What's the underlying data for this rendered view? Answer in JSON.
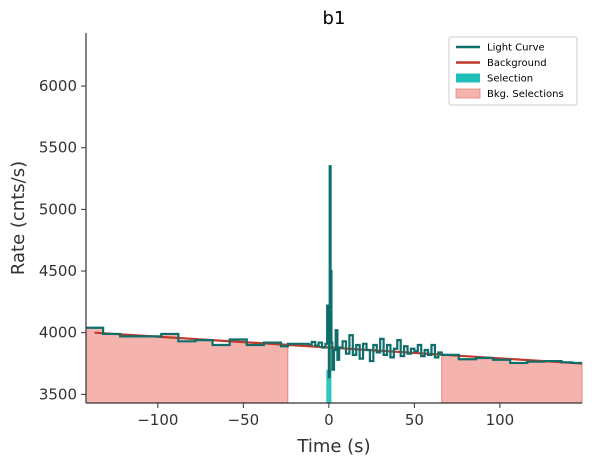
{
  "chart_data": {
    "type": "line",
    "title": "b1",
    "xlabel": "Time (s)",
    "ylabel": "Rate (cnts/s)",
    "xlim": [
      -142,
      148
    ],
    "ylim": [
      3430,
      6430
    ],
    "xticks": [
      -100,
      -50,
      0,
      50,
      100
    ],
    "xtick_labels": [
      "−100",
      "−50",
      "0",
      "50",
      "100"
    ],
    "yticks": [
      3500,
      4000,
      4500,
      5000,
      5500,
      6000
    ],
    "ytick_labels": [
      "3500",
      "4000",
      "4500",
      "5000",
      "5500",
      "6000"
    ],
    "grid": false,
    "legend_position": "top-right",
    "legend": [
      {
        "label": "Light Curve",
        "kind": "line",
        "color": "#0e6e6a"
      },
      {
        "label": "Background",
        "kind": "line",
        "color": "#c0392b"
      },
      {
        "label": "Selection",
        "kind": "patch",
        "color": "#1fbfb8"
      },
      {
        "label": "Bkg. Selections",
        "kind": "patch",
        "color": "#f4b4ad"
      }
    ],
    "colors": {
      "light_curve": "#0e6e6a",
      "background": "#c0392b",
      "selection": "#1fbfb8",
      "bkg_selection_fill": "#f4b4ad",
      "bkg_selection_edge": "#e8837a"
    },
    "series": [
      {
        "name": "Light Curve",
        "style": "step",
        "x": [
          -142,
          -132,
          -122,
          -107,
          -98,
          -88,
          -78,
          -68,
          -58,
          -48,
          -38,
          -28,
          -24,
          -12,
          -10,
          -8,
          -6,
          -4,
          -2,
          -1,
          0,
          0.5,
          1,
          1.5,
          2,
          3,
          4,
          5,
          6,
          8,
          10,
          12,
          14,
          16,
          18,
          20,
          22,
          24,
          26,
          28,
          30,
          32,
          34,
          36,
          38,
          40,
          42,
          44,
          46,
          48,
          50,
          52,
          54,
          56,
          58,
          60,
          62,
          64,
          66,
          76,
          86,
          96,
          106,
          116,
          126,
          136,
          142,
          148
        ],
        "y": [
          4040,
          3990,
          3970,
          3970,
          3990,
          3930,
          3940,
          3900,
          3945,
          3900,
          3920,
          3890,
          3910,
          3905,
          3925,
          3895,
          3920,
          3880,
          3910,
          4220,
          3640,
          5350,
          4500,
          3920,
          3700,
          3860,
          4020,
          3780,
          3880,
          3930,
          3830,
          3980,
          3820,
          3900,
          3790,
          3910,
          3860,
          3770,
          3900,
          3840,
          3950,
          3820,
          3900,
          3800,
          3870,
          3940,
          3810,
          3890,
          3830,
          3870,
          3850,
          3900,
          3810,
          3860,
          3820,
          3900,
          3800,
          3840,
          3820,
          3785,
          3795,
          3780,
          3755,
          3765,
          3770,
          3760,
          3755,
          3755
        ]
      },
      {
        "name": "Background",
        "style": "line",
        "x": [
          -137,
          148
        ],
        "y": [
          4000,
          3750
        ]
      }
    ],
    "selections": [
      {
        "name": "Selection",
        "x": [
          -1.5,
          1.5
        ]
      }
    ],
    "bkg_selections": [
      {
        "name": "Bkg. Selections",
        "x": [
          -142,
          -24
        ]
      },
      {
        "name": "Bkg. Selections",
        "x": [
          66,
          148
        ]
      }
    ]
  }
}
